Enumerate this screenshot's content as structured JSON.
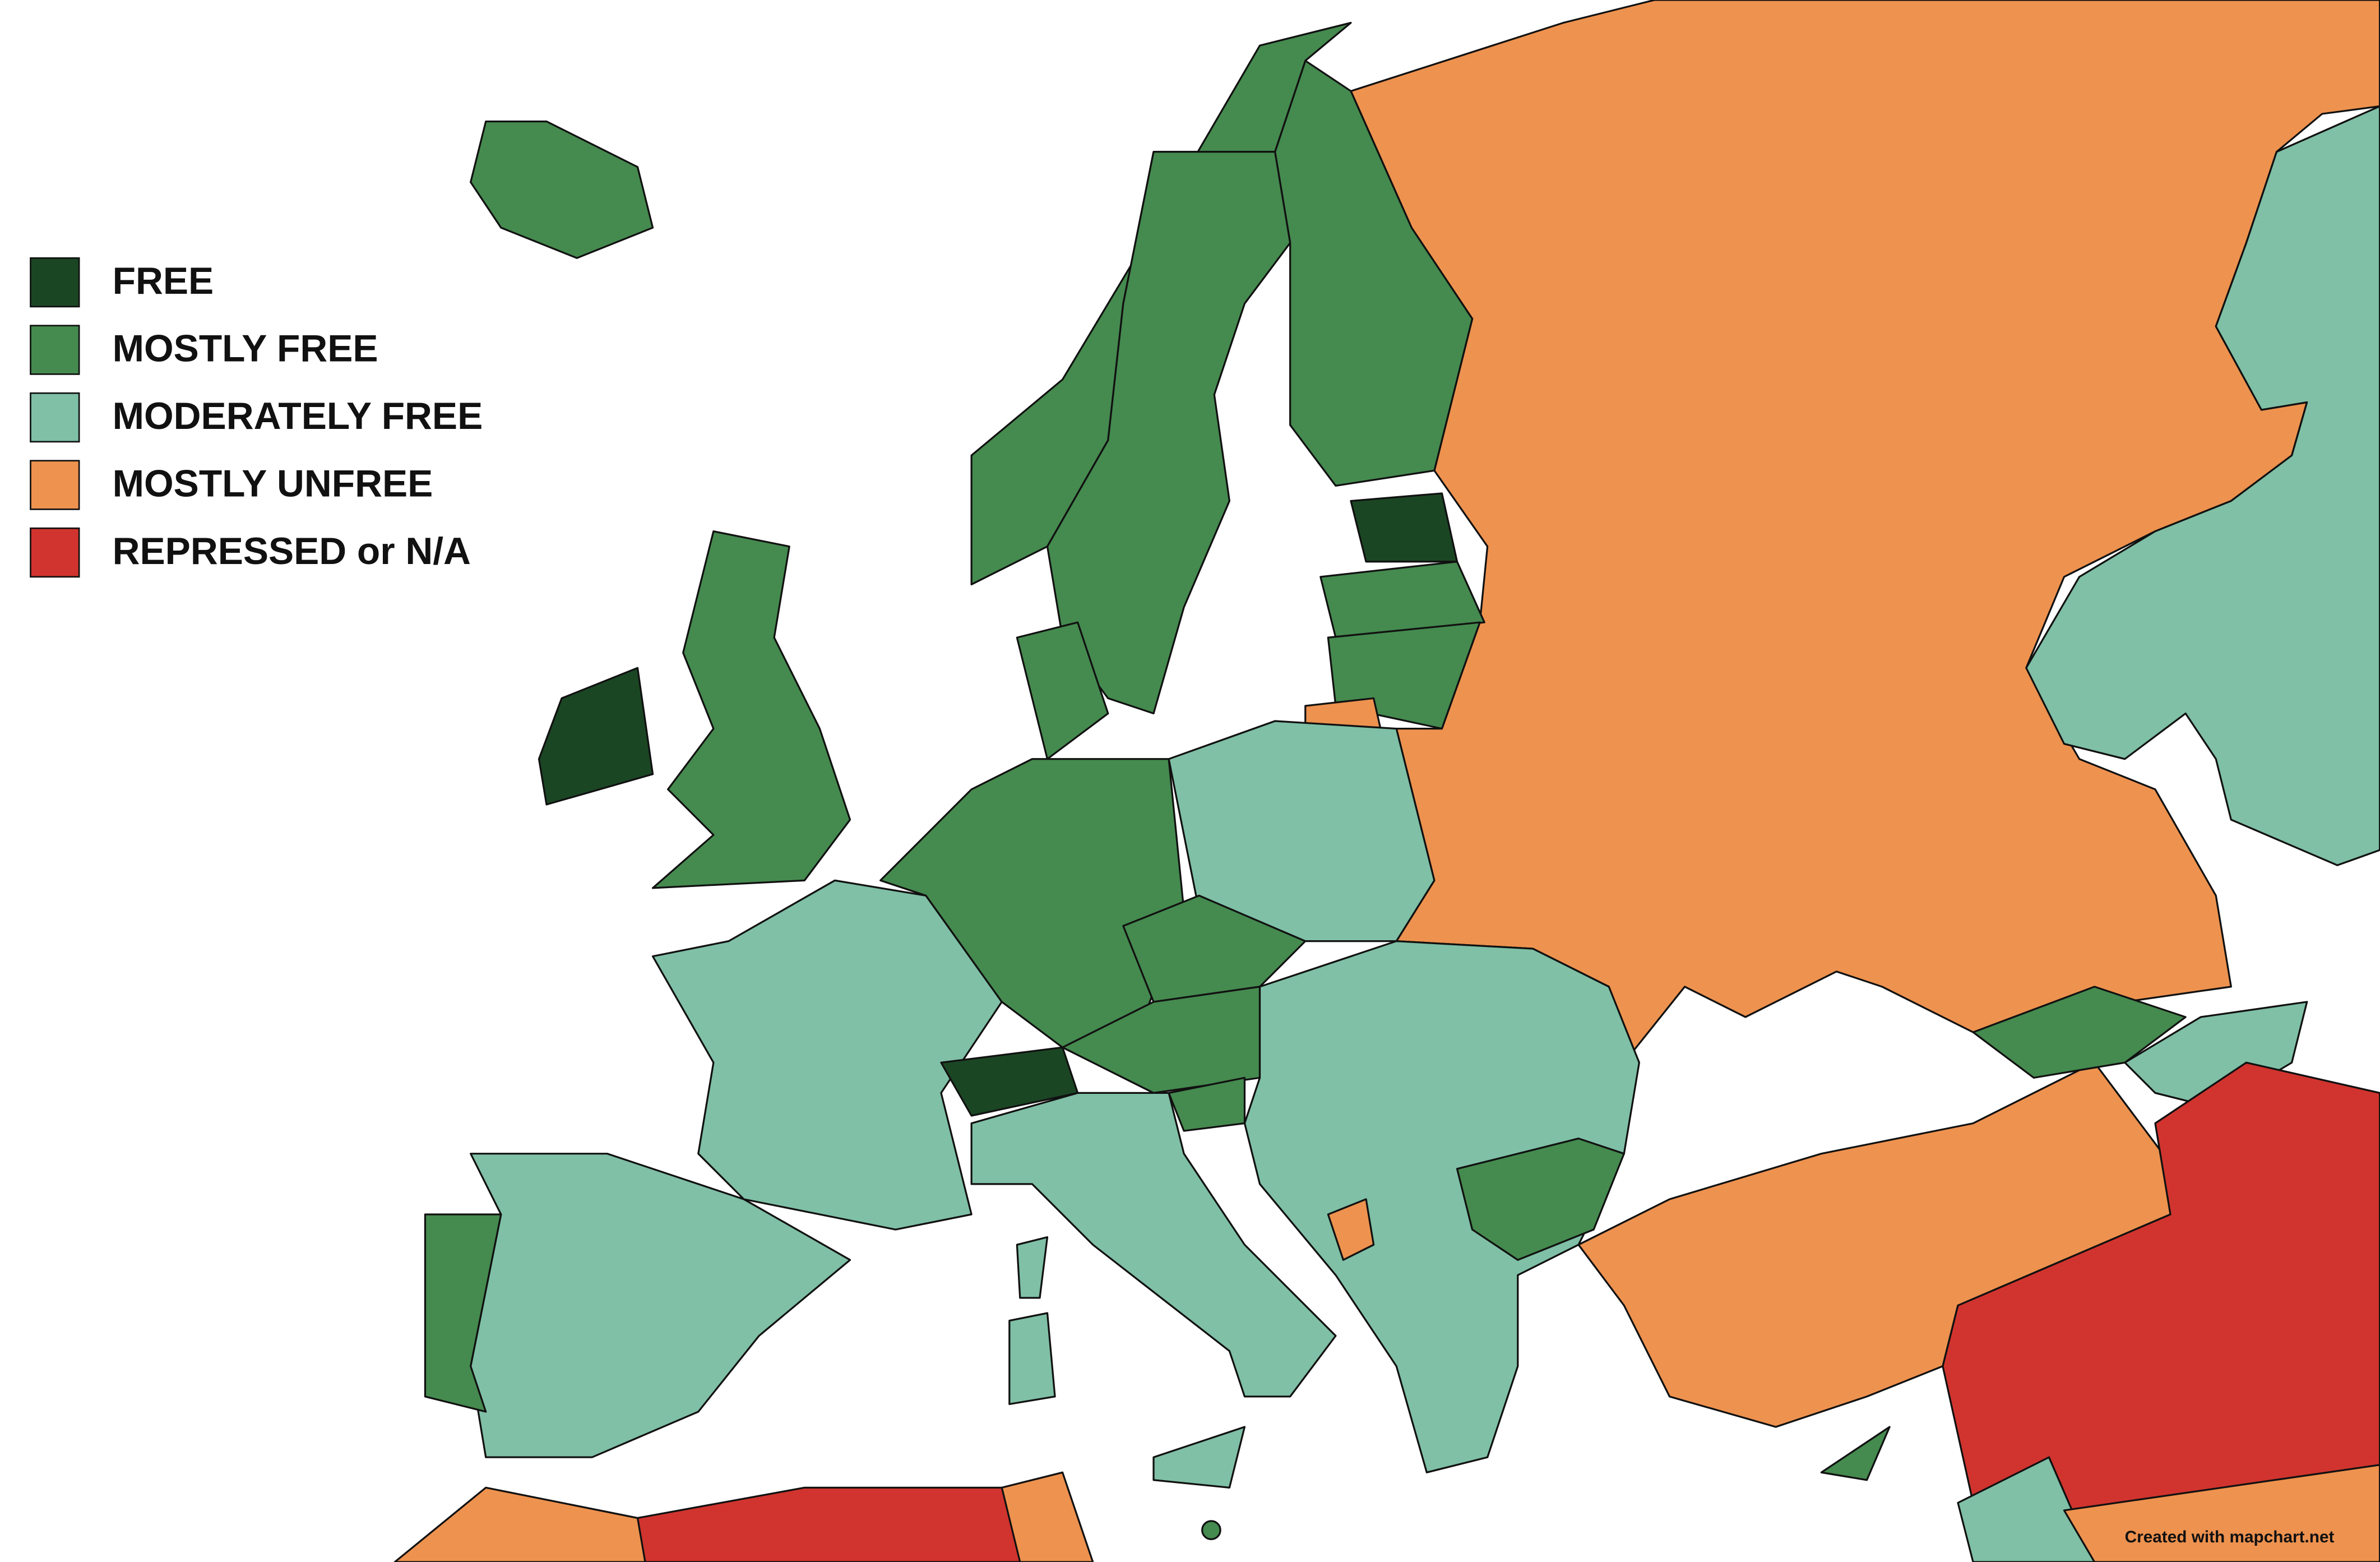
{
  "legend": {
    "items": [
      {
        "label": "FREE",
        "color": "#1b4624"
      },
      {
        "label": "MOSTLY FREE",
        "color": "#458a4f"
      },
      {
        "label": "MODERATELY FREE",
        "color": "#7fc0a6"
      },
      {
        "label": "MOSTLY UNFREE",
        "color": "#ee924f"
      },
      {
        "label": "REPRESSED or N/A",
        "color": "#d1342e"
      }
    ]
  },
  "credit": "Created with mapchart.net"
}
